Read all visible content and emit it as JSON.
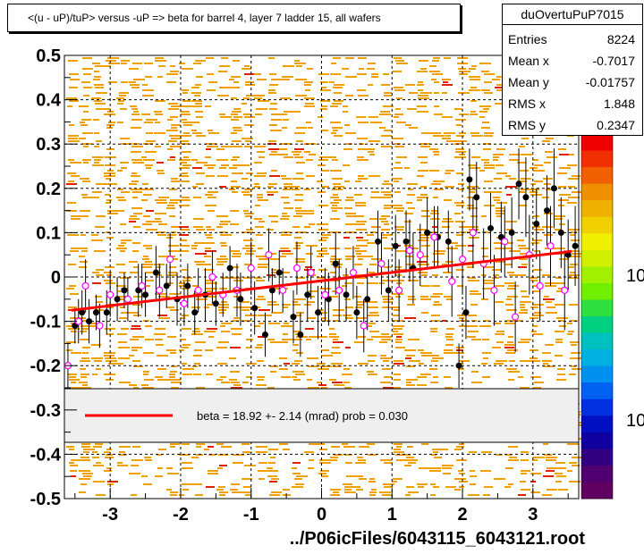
{
  "title": "<(u - uP)/tuP> versus  -uP => beta for barrel 4, layer 7 ladder 15, all wafers",
  "stats": {
    "name": "duOvertuPuP7015",
    "rows": [
      {
        "label": "Entries",
        "value": "8224"
      },
      {
        "label": "Mean x",
        "value": "-0.7017"
      },
      {
        "label": "Mean y",
        "value": "-0.01757"
      },
      {
        "label": "RMS x",
        "value": "1.848"
      },
      {
        "label": "RMS y",
        "value": "0.2347"
      }
    ]
  },
  "legend_text": "beta =   18.92 +-  2.14 (mrad) prob = 0.030",
  "footer": "../P06icFiles/6043115_6043121.root",
  "colorbar_labels": [
    "10",
    "10"
  ],
  "colors": {
    "heat": "#f0a000",
    "fit_line": "#ff0000",
    "black_points": "#000000",
    "open_points": "#ff00ff"
  },
  "chart_data": {
    "type": "scatter",
    "xlim": [
      -3.65,
      3.65
    ],
    "ylim": [
      -0.5,
      0.5
    ],
    "x_ticks": [
      -3,
      -2,
      -1,
      0,
      1,
      2,
      3
    ],
    "y_ticks": [
      -0.5,
      -0.4,
      -0.3,
      -0.2,
      -0.1,
      0,
      0.1,
      0.2,
      0.3,
      0.4,
      0.5
    ],
    "y_tick_labels": [
      "-0.5",
      "-0.4",
      "-0.3",
      "-0.2",
      "-0.1",
      "0",
      "0.1",
      "0.2",
      "0.3",
      "0.4",
      "0.5"
    ],
    "grid": true,
    "fit_line": {
      "x": [
        -3.55,
        3.55
      ],
      "y": [
        -0.075,
        0.058
      ]
    },
    "black_points": [
      {
        "x": -3.5,
        "y": -0.11,
        "e": 0.04
      },
      {
        "x": -3.4,
        "y": -0.08,
        "e": 0.05
      },
      {
        "x": -3.3,
        "y": -0.1,
        "e": 0.05
      },
      {
        "x": -3.2,
        "y": -0.08,
        "e": 0.04
      },
      {
        "x": -3.05,
        "y": -0.08,
        "e": 0.05
      },
      {
        "x": -2.9,
        "y": -0.05,
        "e": 0.05
      },
      {
        "x": -2.8,
        "y": -0.03,
        "e": 0.04
      },
      {
        "x": -2.6,
        "y": -0.03,
        "e": 0.06
      },
      {
        "x": -2.5,
        "y": -0.04,
        "e": 0.05
      },
      {
        "x": -2.35,
        "y": 0.01,
        "e": 0.06
      },
      {
        "x": -2.2,
        "y": -0.02,
        "e": 0.05
      },
      {
        "x": -2.05,
        "y": -0.05,
        "e": 0.06
      },
      {
        "x": -1.9,
        "y": -0.02,
        "e": 0.05
      },
      {
        "x": -1.8,
        "y": -0.08,
        "e": 0.05
      },
      {
        "x": -1.65,
        "y": -0.04,
        "e": 0.06
      },
      {
        "x": -1.5,
        "y": -0.06,
        "e": 0.05
      },
      {
        "x": -1.3,
        "y": 0.02,
        "e": 0.05
      },
      {
        "x": -1.15,
        "y": -0.05,
        "e": 0.06
      },
      {
        "x": -0.95,
        "y": -0.07,
        "e": 0.06
      },
      {
        "x": -0.8,
        "y": -0.13,
        "e": 0.05
      },
      {
        "x": -0.7,
        "y": -0.03,
        "e": 0.05
      },
      {
        "x": -0.6,
        "y": 0.01,
        "e": 0.05
      },
      {
        "x": -0.4,
        "y": -0.09,
        "e": 0.06
      },
      {
        "x": -0.3,
        "y": -0.13,
        "e": 0.05
      },
      {
        "x": -0.2,
        "y": -0.04,
        "e": 0.06
      },
      {
        "x": -0.05,
        "y": -0.08,
        "e": 0.06
      },
      {
        "x": 0.1,
        "y": -0.05,
        "e": 0.06
      },
      {
        "x": 0.2,
        "y": 0.03,
        "e": 0.07
      },
      {
        "x": 0.35,
        "y": -0.04,
        "e": 0.06
      },
      {
        "x": 0.5,
        "y": -0.08,
        "e": 0.06
      },
      {
        "x": 0.65,
        "y": -0.05,
        "e": 0.07
      },
      {
        "x": 0.8,
        "y": 0.08,
        "e": 0.07
      },
      {
        "x": 0.95,
        "y": -0.03,
        "e": 0.07
      },
      {
        "x": 1.05,
        "y": 0.07,
        "e": 0.07
      },
      {
        "x": 1.2,
        "y": 0.08,
        "e": 0.07
      },
      {
        "x": 1.3,
        "y": 0.02,
        "e": 0.08
      },
      {
        "x": 1.5,
        "y": 0.1,
        "e": 0.08
      },
      {
        "x": 1.65,
        "y": 0.09,
        "e": 0.07
      },
      {
        "x": 1.8,
        "y": 0.08,
        "e": 0.07
      },
      {
        "x": 1.95,
        "y": -0.2,
        "e": 0.05
      },
      {
        "x": 2.05,
        "y": -0.08,
        "e": 0.06
      },
      {
        "x": 2.1,
        "y": 0.22,
        "e": 0.07
      },
      {
        "x": 2.2,
        "y": 0.18,
        "e": 0.08
      },
      {
        "x": 2.4,
        "y": 0.11,
        "e": 0.08
      },
      {
        "x": 2.55,
        "y": 0.09,
        "e": 0.08
      },
      {
        "x": 2.7,
        "y": 0.1,
        "e": 0.08
      },
      {
        "x": 2.8,
        "y": 0.21,
        "e": 0.08
      },
      {
        "x": 2.9,
        "y": 0.18,
        "e": 0.09
      },
      {
        "x": 3.05,
        "y": 0.12,
        "e": 0.08
      },
      {
        "x": 3.2,
        "y": 0.15,
        "e": 0.08
      },
      {
        "x": 3.3,
        "y": 0.2,
        "e": 0.09
      },
      {
        "x": 3.4,
        "y": 0.1,
        "e": 0.08
      },
      {
        "x": 3.5,
        "y": 0.05,
        "e": 0.08
      },
      {
        "x": 3.6,
        "y": 0.07,
        "e": 0.09
      }
    ],
    "open_points": [
      {
        "x": -3.6,
        "y": -0.2,
        "e": 0.05
      },
      {
        "x": -3.45,
        "y": -0.1,
        "e": 0.05
      },
      {
        "x": -3.35,
        "y": -0.02,
        "e": 0.06
      },
      {
        "x": -3.15,
        "y": -0.11,
        "e": 0.05
      },
      {
        "x": -3.0,
        "y": -0.04,
        "e": 0.05
      },
      {
        "x": -2.75,
        "y": -0.05,
        "e": 0.05
      },
      {
        "x": -2.55,
        "y": -0.02,
        "e": 0.05
      },
      {
        "x": -2.3,
        "y": -0.03,
        "e": 0.06
      },
      {
        "x": -2.15,
        "y": 0.04,
        "e": 0.06
      },
      {
        "x": -1.95,
        "y": -0.06,
        "e": 0.05
      },
      {
        "x": -1.75,
        "y": -0.03,
        "e": 0.05
      },
      {
        "x": -1.55,
        "y": 0.0,
        "e": 0.06
      },
      {
        "x": -1.4,
        "y": -0.04,
        "e": 0.05
      },
      {
        "x": -1.2,
        "y": -0.03,
        "e": 0.06
      },
      {
        "x": -1.0,
        "y": 0.02,
        "e": 0.06
      },
      {
        "x": -0.75,
        "y": 0.05,
        "e": 0.06
      },
      {
        "x": -0.55,
        "y": -0.03,
        "e": 0.05
      },
      {
        "x": -0.35,
        "y": 0.02,
        "e": 0.06
      },
      {
        "x": -0.15,
        "y": 0.01,
        "e": 0.06
      },
      {
        "x": 0.05,
        "y": -0.04,
        "e": 0.06
      },
      {
        "x": 0.25,
        "y": -0.03,
        "e": 0.07
      },
      {
        "x": 0.45,
        "y": 0.01,
        "e": 0.06
      },
      {
        "x": 0.6,
        "y": -0.11,
        "e": 0.06
      },
      {
        "x": 0.85,
        "y": 0.03,
        "e": 0.07
      },
      {
        "x": 1.1,
        "y": -0.03,
        "e": 0.07
      },
      {
        "x": 1.25,
        "y": 0.06,
        "e": 0.07
      },
      {
        "x": 1.4,
        "y": 0.05,
        "e": 0.07
      },
      {
        "x": 1.6,
        "y": 0.09,
        "e": 0.07
      },
      {
        "x": 1.85,
        "y": -0.01,
        "e": 0.08
      },
      {
        "x": 2.0,
        "y": 0.04,
        "e": 0.08
      },
      {
        "x": 2.15,
        "y": 0.1,
        "e": 0.08
      },
      {
        "x": 2.3,
        "y": 0.03,
        "e": 0.08
      },
      {
        "x": 2.45,
        "y": -0.03,
        "e": 0.08
      },
      {
        "x": 2.6,
        "y": 0.08,
        "e": 0.08
      },
      {
        "x": 2.75,
        "y": -0.09,
        "e": 0.08
      },
      {
        "x": 2.95,
        "y": 0.05,
        "e": 0.09
      },
      {
        "x": 3.1,
        "y": -0.02,
        "e": 0.08
      },
      {
        "x": 3.25,
        "y": 0.07,
        "e": 0.09
      },
      {
        "x": 3.45,
        "y": -0.03,
        "e": 0.09
      }
    ]
  }
}
